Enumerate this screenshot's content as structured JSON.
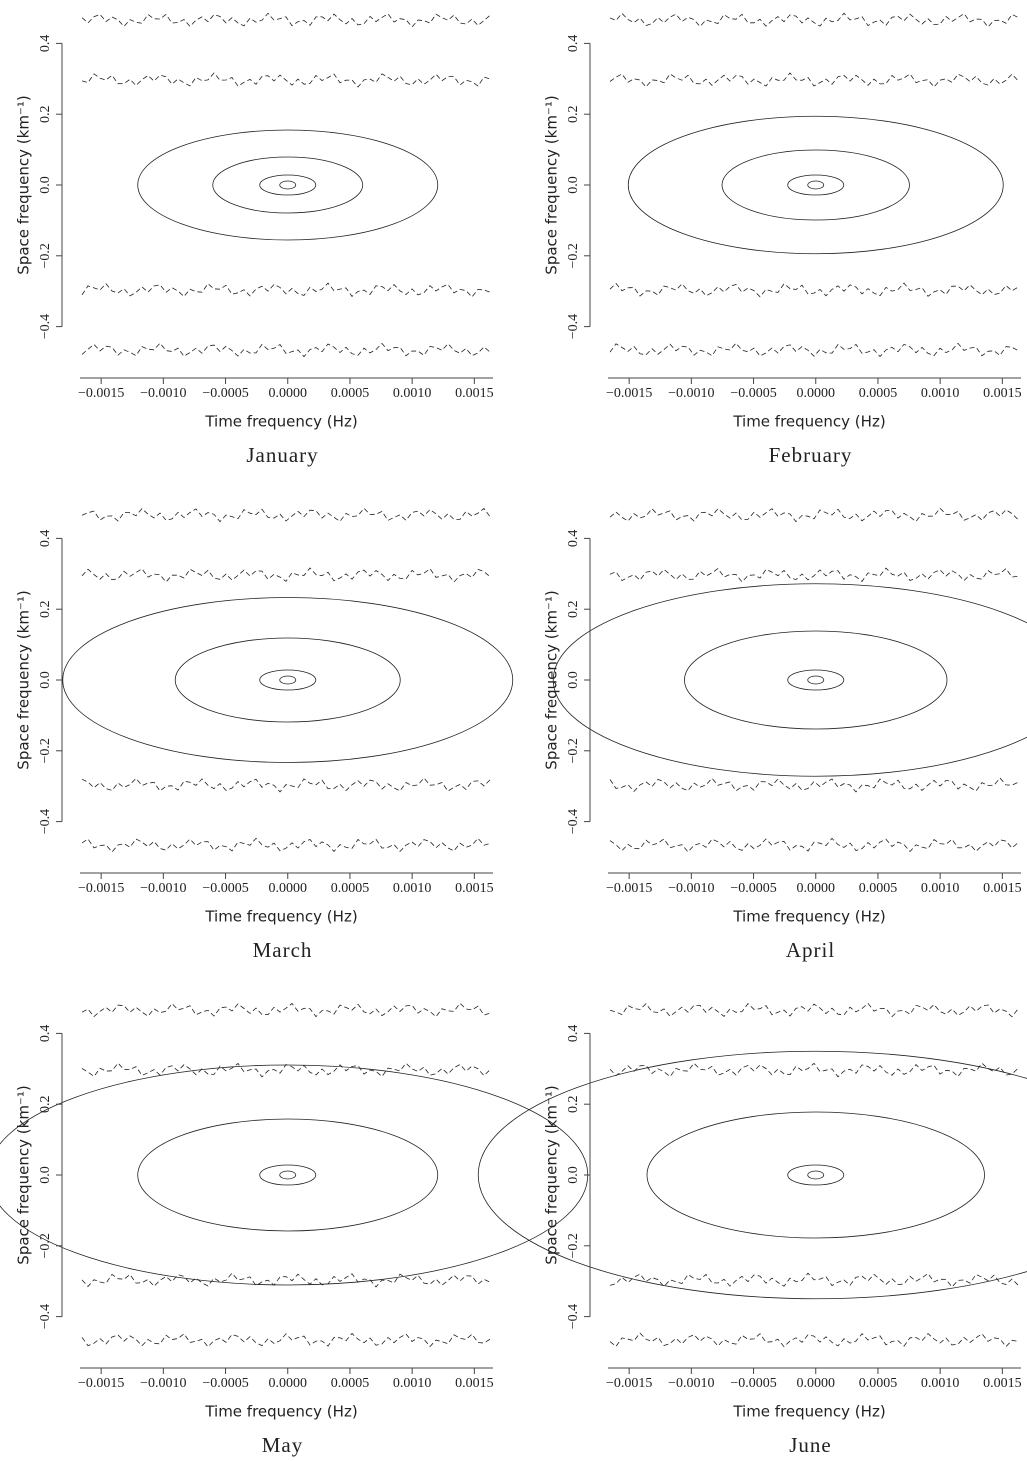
{
  "chart_data": [
    {
      "type": "contour",
      "caption": "January",
      "xlabel": "Time frequency (Hz)",
      "ylabel": "Space frequency (km⁻¹)",
      "xlim": [
        -0.00167,
        0.00165
      ],
      "ylim": [
        -0.5,
        0.5
      ],
      "xticks": [
        {
          "value": -0.0015,
          "label": "−0.0015"
        },
        {
          "value": -0.001,
          "label": "−0.0010"
        },
        {
          "value": -0.0005,
          "label": "−0.0005"
        },
        {
          "value": 0,
          "label": "0.0000"
        },
        {
          "value": 0.0005,
          "label": "0.0005"
        },
        {
          "value": 0.001,
          "label": "0.0010"
        },
        {
          "value": 0.0015,
          "label": "0.0015"
        }
      ],
      "yticks": [
        {
          "value": -0.4,
          "label": "−0.4"
        },
        {
          "value": -0.2,
          "label": "−0.2"
        },
        {
          "value": 0,
          "label": "0.0"
        },
        0.2,
        0.4
      ]
    },
    {
      "type": "contour",
      "caption": "February",
      "xlabel": "Time frequency (Hz)",
      "ylabel": "Space frequency (km⁻¹)",
      "xlim": [
        -0.00167,
        0.00165
      ],
      "ylim": [
        -0.5,
        0.5
      ],
      "xticks": [
        {
          "value": -0.0015,
          "label": "−0.0015"
        },
        {
          "value": -0.001,
          "label": "−0.0010"
        },
        {
          "value": -0.0005,
          "label": "−0.0005"
        },
        {
          "value": 0,
          "label": "0.0000"
        },
        {
          "value": 0.0005,
          "label": "0.0005"
        },
        {
          "value": 0.001,
          "label": "0.0010"
        },
        {
          "value": 0.0015,
          "label": "0.0015"
        }
      ],
      "yticks": [
        {
          "value": -0.4,
          "label": "−0.4"
        },
        {
          "value": -0.2,
          "label": "−0.2"
        },
        {
          "value": 0,
          "label": "0.0"
        },
        0.2,
        0.4
      ]
    },
    {
      "type": "contour",
      "caption": "March",
      "xlabel": "Time frequency (Hz)",
      "ylabel": "Space frequency (km⁻¹)",
      "xlim": [
        -0.00167,
        0.00165
      ],
      "ylim": [
        -0.5,
        0.5
      ],
      "xticks": [
        {
          "value": -0.0015,
          "label": "−0.0015"
        },
        {
          "value": -0.001,
          "label": "−0.0010"
        },
        {
          "value": -0.0005,
          "label": "−0.0005"
        },
        {
          "value": 0,
          "label": "0.0000"
        },
        {
          "value": 0.0005,
          "label": "0.0005"
        },
        {
          "value": 0.001,
          "label": "0.0010"
        },
        {
          "value": 0.0015,
          "label": "0.0015"
        }
      ],
      "yticks": [
        {
          "value": -0.4,
          "label": "−0.4"
        },
        {
          "value": -0.2,
          "label": "−0.2"
        },
        {
          "value": 0,
          "label": "0.0"
        },
        0.2,
        0.4
      ]
    },
    {
      "type": "contour",
      "caption": "April",
      "xlabel": "Time frequency (Hz)",
      "ylabel": "Space frequency (km⁻¹)",
      "xlim": [
        -0.00167,
        0.00165
      ],
      "ylim": [
        -0.5,
        0.5
      ],
      "xticks": [
        {
          "value": -0.0015,
          "label": "−0.0015"
        },
        {
          "value": -0.001,
          "label": "−0.0010"
        },
        {
          "value": -0.0005,
          "label": "−0.0005"
        },
        {
          "value": 0,
          "label": "0.0000"
        },
        {
          "value": 0.0005,
          "label": "0.0005"
        },
        {
          "value": 0.001,
          "label": "0.0010"
        },
        {
          "value": 0.0015,
          "label": "0.0015"
        }
      ],
      "yticks": [
        {
          "value": -0.4,
          "label": "−0.4"
        },
        {
          "value": -0.2,
          "label": "−0.2"
        },
        {
          "value": 0,
          "label": "0.0"
        },
        0.2,
        0.4
      ]
    },
    {
      "type": "contour",
      "caption": "May",
      "xlabel": "Time frequency (Hz)",
      "ylabel": "Space frequency (km⁻¹)",
      "xlim": [
        -0.00167,
        0.00165
      ],
      "ylim": [
        -0.5,
        0.5
      ],
      "xticks": [
        {
          "value": -0.0015,
          "label": "−0.0015"
        },
        {
          "value": -0.001,
          "label": "−0.0010"
        },
        {
          "value": -0.0005,
          "label": "−0.0005"
        },
        {
          "value": 0,
          "label": "0.0000"
        },
        {
          "value": 0.0005,
          "label": "0.0005"
        },
        {
          "value": 0.001,
          "label": "0.0010"
        },
        {
          "value": 0.0015,
          "label": "0.0015"
        }
      ],
      "yticks": [
        {
          "value": -0.4,
          "label": "−0.4"
        },
        {
          "value": -0.2,
          "label": "−0.2"
        },
        {
          "value": 0,
          "label": "0.0"
        },
        0.2,
        0.4
      ]
    },
    {
      "type": "contour",
      "caption": "June",
      "xlabel": "Time frequency (Hz)",
      "ylabel": "Space frequency (km⁻¹)",
      "xlim": [
        -0.00167,
        0.00165
      ],
      "ylim": [
        -0.5,
        0.5
      ],
      "xticks": [
        {
          "value": -0.0015,
          "label": "−0.0015"
        },
        {
          "value": -0.001,
          "label": "−0.0010"
        },
        {
          "value": -0.0005,
          "label": "−0.0005"
        },
        {
          "value": 0,
          "label": "0.0000"
        },
        {
          "value": 0.0005,
          "label": "0.0005"
        },
        {
          "value": 0.001,
          "label": "0.0010"
        },
        {
          "value": 0.0015,
          "label": "0.0015"
        }
      ],
      "yticks": [
        {
          "value": -0.4,
          "label": "−0.4"
        },
        {
          "value": -0.2,
          "label": "−0.2"
        },
        {
          "value": 0,
          "label": "0.0"
        },
        0.2,
        0.4
      ]
    }
  ]
}
